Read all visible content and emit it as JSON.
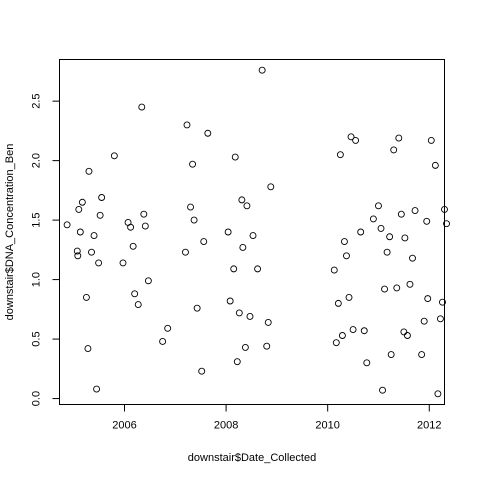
{
  "chart_data": {
    "type": "scatter",
    "title": "",
    "xlabel": "downstair$Date_Collected",
    "ylabel": "downstair$DNA_Concentration_Ben",
    "xlim": [
      2004.72,
      2012.3
    ],
    "ylim": [
      -0.05,
      2.85
    ],
    "x_ticks": [
      2006,
      2008,
      2010,
      2012
    ],
    "x_tick_labels": [
      "2006",
      "2008",
      "2010",
      "2012"
    ],
    "y_ticks": [
      0.0,
      0.5,
      1.0,
      1.5,
      2.0,
      2.5
    ],
    "y_tick_labels": [
      "0.0",
      "0.5",
      "1.0",
      "1.5",
      "2.0",
      "2.5"
    ],
    "grid": false,
    "legend": "none",
    "marker": "open-circle",
    "points": [
      [
        2004.87,
        1.46
      ],
      [
        2005.07,
        1.24
      ],
      [
        2005.08,
        1.2
      ],
      [
        2005.1,
        1.59
      ],
      [
        2005.13,
        1.4
      ],
      [
        2005.17,
        1.65
      ],
      [
        2005.25,
        0.85
      ],
      [
        2005.28,
        0.42
      ],
      [
        2005.3,
        1.91
      ],
      [
        2005.35,
        1.23
      ],
      [
        2005.4,
        1.37
      ],
      [
        2005.45,
        0.08
      ],
      [
        2005.49,
        1.14
      ],
      [
        2005.52,
        1.54
      ],
      [
        2005.55,
        1.69
      ],
      [
        2005.8,
        2.04
      ],
      [
        2005.97,
        1.14
      ],
      [
        2006.07,
        1.48
      ],
      [
        2006.12,
        1.44
      ],
      [
        2006.17,
        1.28
      ],
      [
        2006.2,
        0.88
      ],
      [
        2006.27,
        0.79
      ],
      [
        2006.34,
        2.45
      ],
      [
        2006.38,
        1.55
      ],
      [
        2006.41,
        1.45
      ],
      [
        2006.47,
        0.99
      ],
      [
        2006.75,
        0.48
      ],
      [
        2006.85,
        0.59
      ],
      [
        2007.2,
        1.23
      ],
      [
        2007.23,
        2.3
      ],
      [
        2007.3,
        1.61
      ],
      [
        2007.34,
        1.97
      ],
      [
        2007.37,
        1.5
      ],
      [
        2007.43,
        0.76
      ],
      [
        2007.52,
        0.23
      ],
      [
        2007.56,
        1.32
      ],
      [
        2007.64,
        2.23
      ],
      [
        2008.04,
        1.4
      ],
      [
        2008.08,
        0.82
      ],
      [
        2008.15,
        1.09
      ],
      [
        2008.18,
        2.03
      ],
      [
        2008.22,
        0.31
      ],
      [
        2008.26,
        0.72
      ],
      [
        2008.31,
        1.67
      ],
      [
        2008.33,
        1.27
      ],
      [
        2008.38,
        0.43
      ],
      [
        2008.41,
        1.62
      ],
      [
        2008.47,
        0.69
      ],
      [
        2008.53,
        1.37
      ],
      [
        2008.62,
        1.09
      ],
      [
        2008.71,
        2.76
      ],
      [
        2008.8,
        0.44
      ],
      [
        2008.83,
        0.64
      ],
      [
        2008.88,
        1.78
      ],
      [
        2010.13,
        1.08
      ],
      [
        2010.17,
        0.47
      ],
      [
        2010.21,
        0.8
      ],
      [
        2010.25,
        2.05
      ],
      [
        2010.29,
        0.53
      ],
      [
        2010.33,
        1.32
      ],
      [
        2010.37,
        1.2
      ],
      [
        2010.42,
        0.85
      ],
      [
        2010.46,
        2.2
      ],
      [
        2010.5,
        0.58
      ],
      [
        2010.55,
        2.17
      ],
      [
        2010.65,
        1.4
      ],
      [
        2010.72,
        0.57
      ],
      [
        2010.77,
        0.3
      ],
      [
        2010.9,
        1.51
      ],
      [
        2011.0,
        1.62
      ],
      [
        2011.05,
        1.43
      ],
      [
        2011.08,
        0.07
      ],
      [
        2011.12,
        0.92
      ],
      [
        2011.17,
        1.23
      ],
      [
        2011.22,
        1.36
      ],
      [
        2011.25,
        0.37
      ],
      [
        2011.3,
        2.09
      ],
      [
        2011.36,
        0.93
      ],
      [
        2011.4,
        2.19
      ],
      [
        2011.45,
        1.55
      ],
      [
        2011.5,
        0.56
      ],
      [
        2011.52,
        1.35
      ],
      [
        2011.57,
        0.53
      ],
      [
        2011.62,
        0.96
      ],
      [
        2011.67,
        1.18
      ],
      [
        2011.72,
        1.58
      ],
      [
        2011.85,
        0.37
      ],
      [
        2011.9,
        0.65
      ],
      [
        2011.95,
        1.49
      ],
      [
        2011.97,
        0.84
      ],
      [
        2012.04,
        2.17
      ],
      [
        2012.12,
        1.96
      ],
      [
        2012.17,
        0.04
      ],
      [
        2012.22,
        0.67
      ],
      [
        2012.26,
        0.81
      ],
      [
        2012.3,
        1.59
      ],
      [
        2012.34,
        1.47
      ]
    ]
  }
}
